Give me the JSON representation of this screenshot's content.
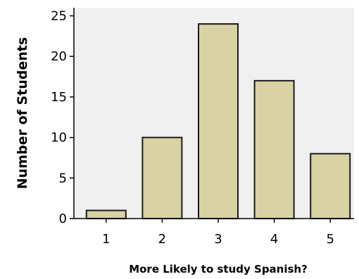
{
  "chart_data": {
    "type": "bar",
    "categories": [
      "1",
      "2",
      "3",
      "4",
      "5"
    ],
    "values": [
      1,
      10,
      24,
      17,
      8
    ],
    "title": "",
    "xlabel": "More Likely to study Spanish?",
    "ylabel": "Number of Students",
    "ylim": [
      0,
      26
    ],
    "yticks": [
      "0",
      "5",
      "10",
      "15",
      "20",
      "25"
    ],
    "grid": false,
    "legend": "none",
    "colors": {
      "plot_background": "#f0f0f0",
      "bar_fill": "#d8d2a4",
      "bar_stroke": "#1a1a1a"
    }
  }
}
